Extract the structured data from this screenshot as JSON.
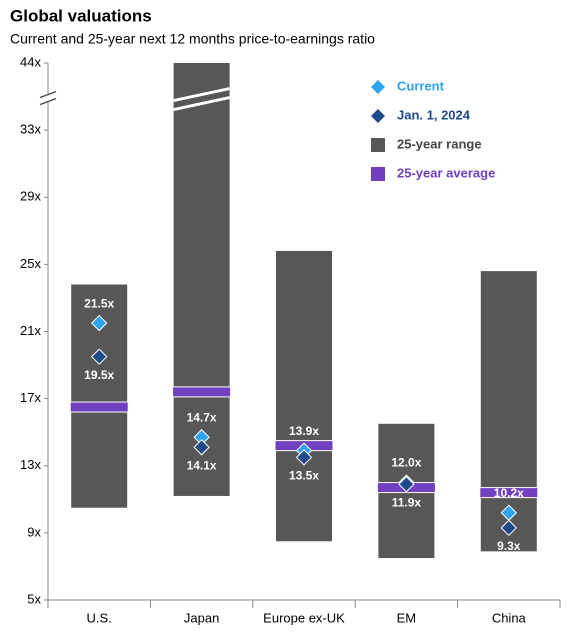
{
  "chart_data": {
    "type": "range",
    "title": "Global valuations",
    "subtitle": "Current and 25-year next 12 months price-to-earnings ratio",
    "categories": [
      "U.S.",
      "Japan",
      "Europe ex-UK",
      "EM",
      "China"
    ],
    "ylim": [
      5,
      44
    ],
    "yticks": [
      {
        "value": 5,
        "label": "5x"
      },
      {
        "value": 9,
        "label": "9x"
      },
      {
        "value": 13,
        "label": "13x"
      },
      {
        "value": 17,
        "label": "17x"
      },
      {
        "value": 21,
        "label": "21x"
      },
      {
        "value": 25,
        "label": "25x"
      },
      {
        "value": 29,
        "label": "29x"
      },
      {
        "value": 33,
        "label": "33x"
      },
      {
        "value": 44,
        "label": "44x"
      }
    ],
    "series": [
      {
        "name": "Current",
        "color": "#2ea3ef",
        "values": [
          21.5,
          14.7,
          13.9,
          12.0,
          10.2
        ],
        "value_labels": [
          "21.5x",
          "14.7x",
          "13.9x",
          "12.0x",
          "10.2x"
        ]
      },
      {
        "name": "Jan. 1, 2024",
        "color": "#1f4a8a",
        "values": [
          19.5,
          14.1,
          13.5,
          11.9,
          9.3
        ],
        "value_labels": [
          "19.5x",
          "14.1x",
          "13.5x",
          "11.9x",
          "9.3x"
        ]
      },
      {
        "name": "25-year range",
        "color": "#575757",
        "low": [
          10.5,
          11.2,
          8.5,
          7.5,
          7.9
        ],
        "high": [
          23.8,
          44,
          25.8,
          15.5,
          24.6
        ]
      },
      {
        "name": "25-year average",
        "color": "#7040c0",
        "values": [
          16.5,
          17.4,
          14.2,
          11.7,
          11.4
        ]
      }
    ]
  }
}
